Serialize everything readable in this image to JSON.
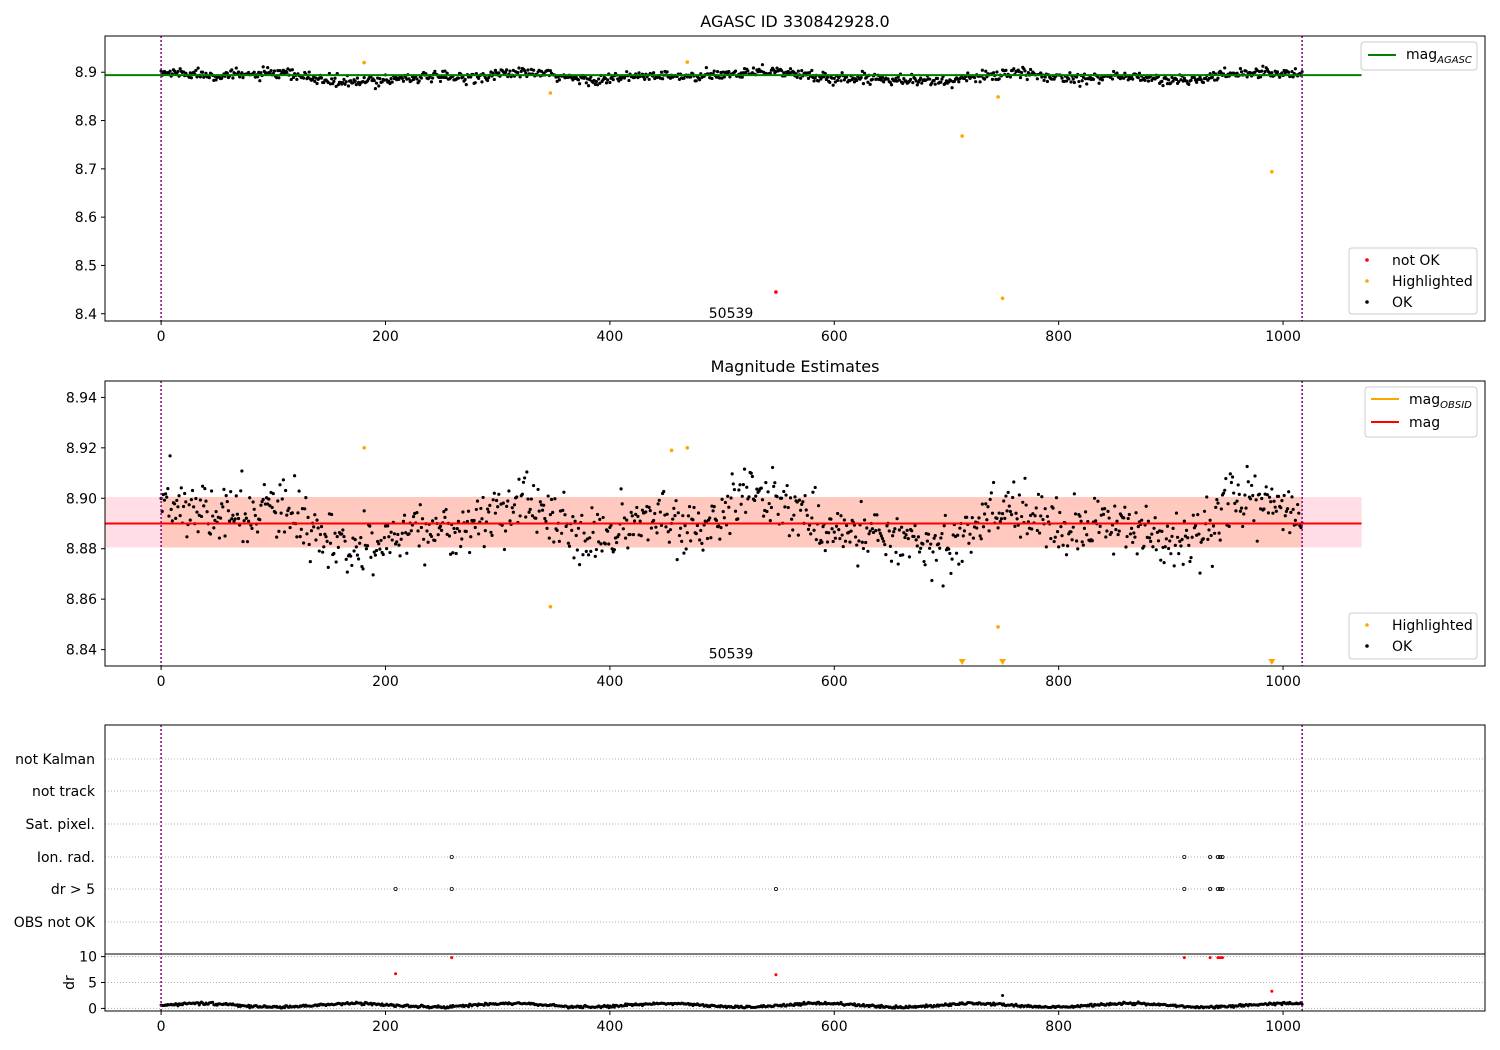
{
  "colors": {
    "ok": "#000000",
    "highlighted": "#ffa500",
    "not_ok": "#ff0000",
    "agasc": "#008000",
    "obsid": "#ffa500",
    "mag": "#ff0000",
    "band_outer": "#ffc0cb",
    "band_inner": "#ffa07a",
    "vline": "#800080",
    "grid": "#b0b0b0"
  },
  "chart_data": [
    {
      "type": "scatter",
      "title": "AGASC ID 330842928.0",
      "xlim": [
        -50,
        1180
      ],
      "ylim": [
        8.385,
        8.975
      ],
      "xticks": [
        0,
        200,
        400,
        600,
        800,
        1000
      ],
      "yticks": [
        8.4,
        8.5,
        8.6,
        8.7,
        8.8,
        8.9
      ],
      "vlines": [
        0,
        1017
      ],
      "obsid_label": {
        "text": "50539",
        "x": 508,
        "y": 8.4
      },
      "hlines": [
        {
          "name": "magAGASC",
          "y": 8.894,
          "x": [
            -50,
            1070
          ],
          "color": "#008000"
        }
      ],
      "series_ok": {
        "name": "OK",
        "n_points": 1018,
        "mean": 8.891,
        "spread": 0.009
      },
      "highlighted": [
        [
          181,
          8.92
        ],
        [
          347,
          8.857
        ],
        [
          469,
          8.921
        ],
        [
          714,
          8.768
        ],
        [
          746,
          8.849
        ],
        [
          750,
          8.432
        ],
        [
          990,
          8.694
        ]
      ],
      "not_ok": [
        [
          548,
          8.445
        ]
      ],
      "legend_top": [
        "mag",
        "AGASC"
      ],
      "legend_bottom": [
        "not OK",
        "Highlighted",
        "OK"
      ]
    },
    {
      "type": "scatter",
      "title": "Magnitude Estimates",
      "xlim": [
        -50,
        1180
      ],
      "ylim": [
        8.8335,
        8.9465
      ],
      "xticks": [
        0,
        200,
        400,
        600,
        800,
        1000
      ],
      "yticks": [
        8.84,
        8.86,
        8.88,
        8.9,
        8.92,
        8.94
      ],
      "vlines": [
        0,
        1017
      ],
      "obsid_label": {
        "text": "50539",
        "x": 508,
        "y": 8.838
      },
      "mag": 8.89,
      "band_outer": [
        8.8805,
        8.9005
      ],
      "band_inner": [
        8.8805,
        8.9005
      ],
      "band_x": [
        -50,
        1070
      ],
      "highlighted": [
        [
          181,
          8.92
        ],
        [
          347,
          8.857
        ],
        [
          455,
          8.919
        ],
        [
          469,
          8.92
        ],
        [
          746,
          8.849
        ]
      ],
      "off_scale_markers": [
        714,
        750,
        990
      ],
      "legend_top": [
        [
          "mag",
          "OBSID"
        ],
        [
          "mag",
          ""
        ]
      ],
      "legend_bottom": [
        "Highlighted",
        "OK"
      ]
    },
    {
      "type": "scatter",
      "title": "",
      "xlim": [
        -50,
        1180
      ],
      "flag_labels": [
        "not Kalman",
        "not track",
        "Sat. pixel.",
        "Ion. rad.",
        "dr > 5",
        "OBS not OK"
      ],
      "flags": {
        "Ion. rad.": [
          259,
          912,
          935,
          942,
          944,
          946
        ],
        "dr > 5": [
          209,
          259,
          548,
          912,
          935,
          942,
          944,
          946
        ]
      },
      "vlines": [
        0,
        1017
      ],
      "dr": {
        "ylabel": "dr",
        "ylim": [
          -0.5,
          10.5
        ],
        "yticks": [
          0,
          5,
          10
        ],
        "xticks": [
          0,
          200,
          400,
          600,
          800,
          1000
        ],
        "baseline": 0.6,
        "outliers_black": [
          [
            750,
            2.5
          ]
        ],
        "outliers_red": [
          [
            209,
            6.7
          ],
          [
            259,
            9.8
          ],
          [
            548,
            6.5
          ],
          [
            912,
            9.8
          ],
          [
            935,
            9.8
          ],
          [
            942,
            9.8
          ],
          [
            944,
            9.8
          ],
          [
            946,
            9.8
          ],
          [
            990,
            3.3
          ]
        ]
      }
    }
  ]
}
